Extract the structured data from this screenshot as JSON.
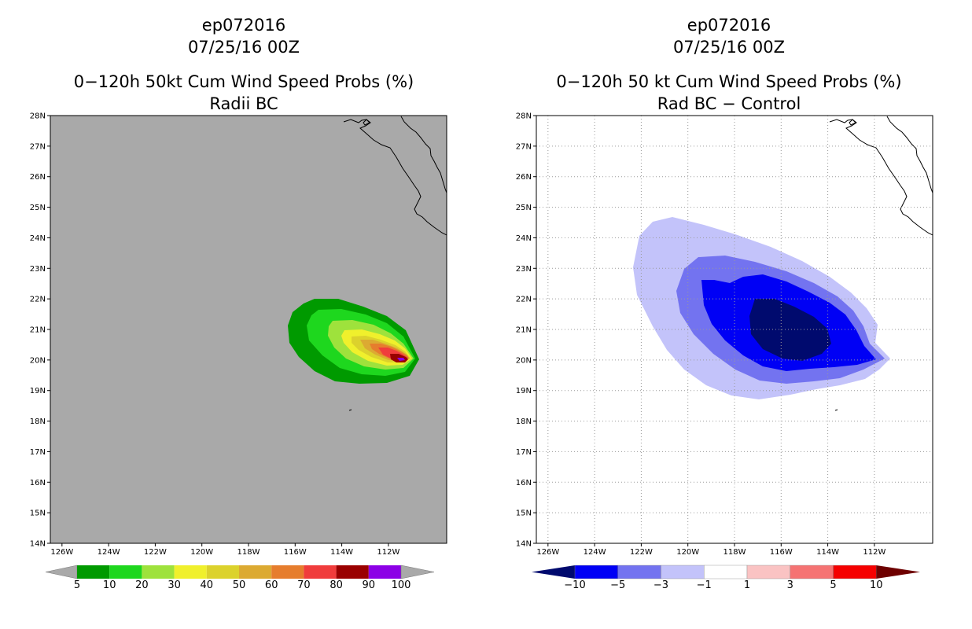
{
  "chart_data": [
    {
      "type": "filled-contour-map",
      "title_lines": [
        "ep072016",
        "07/25/16 00Z",
        "0−120h 50kt Cum Wind Speed Probs (%)",
        "Radii BC"
      ],
      "lat_range": [
        14,
        28
      ],
      "lon_range_west": [
        126.5,
        109.5
      ],
      "lat_ticks": [
        "14N",
        "15N",
        "16N",
        "17N",
        "18N",
        "19N",
        "20N",
        "21N",
        "22N",
        "23N",
        "24N",
        "25N",
        "26N",
        "27N",
        "28N"
      ],
      "lon_ticks": [
        "126W",
        "124W",
        "122W",
        "120W",
        "118W",
        "116W",
        "114W",
        "112W"
      ],
      "background": "#a9a9a9",
      "grid": false,
      "colorbar": {
        "levels": [
          "5",
          "10",
          "20",
          "30",
          "40",
          "50",
          "60",
          "70",
          "80",
          "90",
          "100"
        ],
        "colors": [
          "#009a00",
          "#1ed71e",
          "#9ee23c",
          "#f0f02c",
          "#dcd22c",
          "#dcaa32",
          "#e67d2d",
          "#f03c3c",
          "#9a0000",
          "#8c00e6"
        ],
        "end_color": "#a9a9a9"
      }
    },
    {
      "type": "filled-contour-map",
      "title_lines": [
        "ep072016",
        "07/25/16 00Z",
        "0−120h 50 kt Cum Wind Speed Probs (%)",
        "Rad BC − Control"
      ],
      "lat_range": [
        14,
        28
      ],
      "lon_range_west": [
        126.5,
        109.5
      ],
      "lat_ticks": [
        "14N",
        "15N",
        "16N",
        "17N",
        "18N",
        "19N",
        "20N",
        "21N",
        "22N",
        "23N",
        "24N",
        "25N",
        "26N",
        "27N",
        "28N"
      ],
      "lon_ticks": [
        "126W",
        "124W",
        "122W",
        "120W",
        "118W",
        "116W",
        "114W",
        "112W"
      ],
      "background": "#ffffff",
      "grid": true,
      "colorbar": {
        "levels": [
          "−10",
          "−5",
          "−3",
          "−1",
          "1",
          "3",
          "5",
          "10"
        ],
        "colors": [
          "#000a6e",
          "#0000f5",
          "#7373f0",
          "#c3c3fa",
          "#ffffff",
          "#fac3c3",
          "#f57373",
          "#f50000",
          "#6e0000"
        ]
      }
    }
  ]
}
